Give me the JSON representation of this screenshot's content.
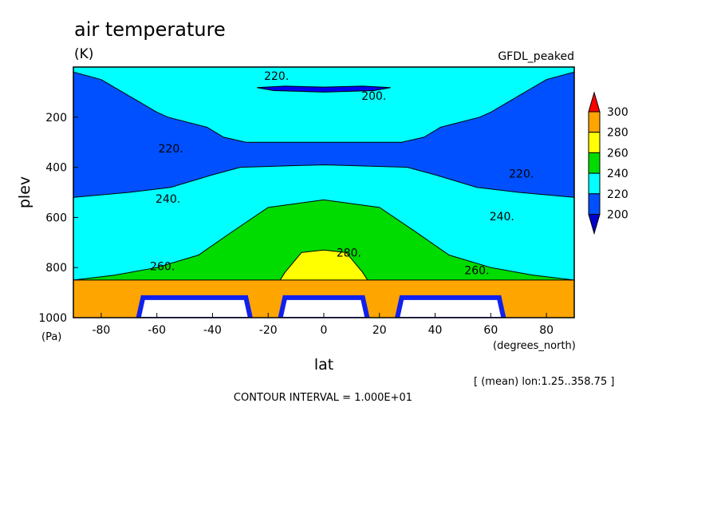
{
  "chart_data": {
    "type": "contour",
    "title": "air temperature",
    "units": "(K)",
    "model": "GFDL_peaked",
    "xlabel": "lat",
    "ylabel": "plev",
    "xunits": "(degrees_north)",
    "yunits": "(Pa)",
    "xlim": [
      -90,
      90
    ],
    "ylim": [
      1000,
      0
    ],
    "xticks": [
      -80,
      -60,
      -40,
      -20,
      0,
      20,
      40,
      60,
      80
    ],
    "yticks": [
      200,
      400,
      600,
      800,
      1000
    ],
    "averaging_note": "[ (mean) lon:1.25..358.75 ]",
    "contour_interval_text": "CONTOUR INTERVAL = 1.000E+01",
    "contour_interval": 10,
    "colorbar": {
      "labels": [
        "300",
        "280",
        "260",
        "240",
        "220",
        "200"
      ],
      "colors": [
        "#ff0000",
        "#ffa500",
        "#ffff00",
        "#00dc00",
        "#00ffff",
        "#0050ff",
        "#0000cd"
      ]
    },
    "levels": [
      {
        "value": 200,
        "color": "#0000ee",
        "cmin": 190,
        "cmax": 200,
        "half": [
          [
            0,
            80
          ],
          [
            14,
            76
          ],
          [
            24,
            82
          ],
          [
            18,
            94
          ],
          [
            0,
            100
          ]
        ]
      },
      {
        "value": 220,
        "color": "#0050ff",
        "cmin": 210,
        "cmax": 220,
        "half": [
          [
            0,
            300
          ],
          [
            28,
            300
          ],
          [
            36,
            280
          ],
          [
            42,
            240
          ],
          [
            56,
            200
          ],
          [
            60,
            180
          ],
          [
            80,
            50
          ],
          [
            90,
            20
          ]
        ]
      },
      {
        "value": 220,
        "color": "#00ffff",
        "cmin": 220,
        "cmax": 240,
        "half": [
          [
            0,
            390
          ],
          [
            30,
            400
          ],
          [
            40,
            430
          ],
          [
            55,
            480
          ],
          [
            70,
            500
          ],
          [
            80,
            510
          ],
          [
            90,
            520
          ]
        ]
      },
      {
        "value": 240,
        "color": "#00dc00",
        "cmin": 240,
        "cmax": 260,
        "half": [
          [
            0,
            530
          ],
          [
            20,
            560
          ],
          [
            32,
            650
          ],
          [
            45,
            750
          ],
          [
            60,
            800
          ],
          [
            75,
            830
          ],
          [
            90,
            850
          ]
        ]
      },
      {
        "value": 260,
        "color": "#ffff00",
        "cmin": 260,
        "cmax": 280,
        "half": [
          [
            0,
            730
          ],
          [
            8,
            740
          ],
          [
            14,
            820
          ],
          [
            22,
            960
          ],
          [
            28,
            1000
          ]
        ]
      },
      {
        "value": 280,
        "color": "#ffa500",
        "cmin": 280,
        "cmax": 300,
        "half": [
          [
            0,
            850
          ]
        ]
      }
    ],
    "contour_labels": [
      {
        "text": "220.",
        "lat": -17,
        "plev": 35
      },
      {
        "text": "200.",
        "lat": 18,
        "plev": 115
      },
      {
        "text": "220.",
        "lat": -55,
        "plev": 325
      },
      {
        "text": "220.",
        "lat": 71,
        "plev": 425
      },
      {
        "text": "240.",
        "lat": -56,
        "plev": 525
      },
      {
        "text": "240.",
        "lat": 64,
        "plev": 595
      },
      {
        "text": "260.",
        "lat": -58,
        "plev": 795
      },
      {
        "text": "260.",
        "lat": 55,
        "plev": 810
      },
      {
        "text": "280.",
        "lat": 9,
        "plev": 740
      }
    ],
    "topography": [
      {
        "lat_start": -65,
        "lat_end": -28,
        "plev_top": 920
      },
      {
        "lat_start": -14,
        "lat_end": 14,
        "plev_top": 920
      },
      {
        "lat_start": 28,
        "lat_end": 63,
        "plev_top": 920
      }
    ]
  }
}
